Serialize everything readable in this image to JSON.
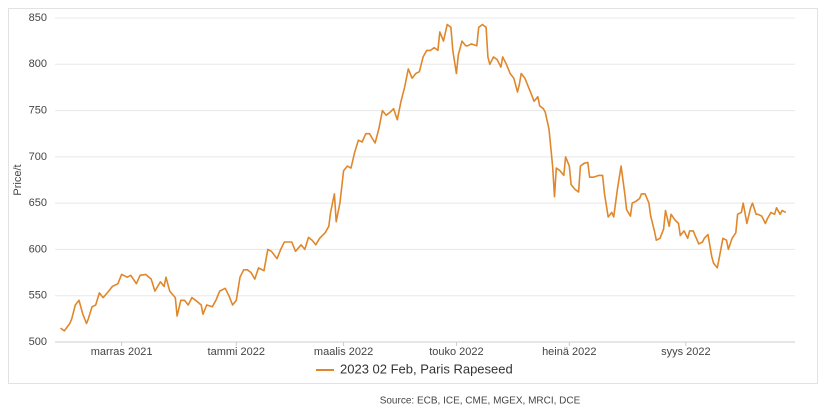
{
  "chart_data": {
    "type": "line",
    "y_label": "Price/t",
    "source": "Source: ECB, ICE, CME, MGEX, MRCI, DCE",
    "x": [
      0,
      2,
      5,
      6,
      8,
      10,
      12,
      14,
      15,
      17,
      19,
      21,
      23,
      26,
      28,
      31,
      33,
      36,
      38,
      41,
      43,
      46,
      49,
      51,
      54,
      56,
      57,
      59,
      62,
      63,
      65,
      67,
      69,
      71,
      73,
      76,
      77,
      79,
      82,
      84,
      86,
      89,
      91,
      93,
      95,
      97,
      99,
      101,
      103,
      105,
      107,
      110,
      112,
      114,
      117,
      119,
      121,
      123,
      125,
      127,
      130,
      132,
      134,
      136,
      138,
      140,
      143,
      145,
      146,
      148,
      149,
      151,
      153,
      155,
      157,
      159,
      161,
      163,
      165,
      167,
      170,
      172,
      174,
      176,
      178,
      180,
      182,
      184,
      186,
      188,
      190,
      192,
      194,
      196,
      198,
      200,
      202,
      204,
      205,
      207,
      209,
      211,
      212,
      214,
      215,
      217,
      219,
      220,
      222,
      225,
      226,
      228,
      230,
      231,
      232,
      234,
      236,
      238,
      239,
      241,
      243,
      245,
      247,
      248,
      249,
      251,
      253,
      254,
      256,
      258,
      259,
      261,
      262,
      264,
      266,
      267,
      268,
      270,
      272,
      273,
      275,
      276,
      278,
      280,
      281,
      283,
      285,
      286,
      288,
      291,
      293,
      294,
      296,
      298,
      299,
      301,
      303,
      305,
      306,
      308,
      309,
      311,
      313,
      314,
      316,
      318,
      319,
      321,
      322,
      324,
      326,
      327,
      329,
      330,
      332,
      334,
      335,
      337,
      339,
      340,
      342,
      343,
      345,
      347,
      348,
      350,
      352,
      353,
      355,
      356,
      358,
      360,
      361,
      363,
      365,
      366,
      368,
      369,
      371,
      373,
      374,
      376,
      377,
      379,
      381,
      382,
      384,
      386,
      387,
      389,
      390,
      392
    ],
    "series": [
      {
        "name": "2023 02 Feb, Paris Rapeseed",
        "color": "#e0872c",
        "values": [
          515,
          512,
          520,
          525,
          540,
          545,
          530,
          520,
          525,
          538,
          540,
          553,
          548,
          555,
          560,
          563,
          573,
          570,
          572,
          563,
          572,
          573,
          568,
          555,
          565,
          560,
          570,
          555,
          548,
          528,
          545,
          545,
          540,
          548,
          545,
          540,
          530,
          540,
          538,
          545,
          555,
          558,
          550,
          540,
          545,
          570,
          578,
          578,
          575,
          568,
          580,
          577,
          600,
          598,
          590,
          600,
          608,
          608,
          608,
          598,
          605,
          600,
          613,
          610,
          605,
          612,
          618,
          625,
          640,
          660,
          630,
          650,
          685,
          690,
          688,
          705,
          718,
          716,
          725,
          725,
          715,
          730,
          750,
          745,
          748,
          752,
          740,
          760,
          775,
          795,
          785,
          790,
          792,
          808,
          815,
          815,
          818,
          815,
          835,
          825,
          843,
          840,
          815,
          790,
          810,
          825,
          820,
          820,
          822,
          820,
          840,
          843,
          840,
          808,
          800,
          808,
          805,
          797,
          808,
          800,
          790,
          785,
          770,
          778,
          790,
          785,
          775,
          770,
          760,
          765,
          755,
          752,
          748,
          730,
          690,
          657,
          688,
          685,
          680,
          700,
          690,
          670,
          665,
          662,
          690,
          693,
          694,
          678,
          678,
          680,
          680,
          660,
          635,
          640,
          635,
          665,
          690,
          660,
          643,
          636,
          650,
          652,
          655,
          660,
          660,
          650,
          636,
          620,
          610,
          612,
          622,
          642,
          625,
          638,
          632,
          628,
          615,
          620,
          612,
          620,
          620,
          615,
          606,
          608,
          612,
          616,
          592,
          585,
          580,
          590,
          612,
          610,
          600,
          612,
          618,
          638,
          640,
          650,
          628,
          645,
          650,
          638,
          638,
          636,
          628,
          633,
          640,
          638,
          645,
          638,
          642,
          640
        ]
      }
    ],
    "xlim": [
      -3,
      397
    ],
    "xticks": [
      {
        "value": 33,
        "label": "marras 2021"
      },
      {
        "value": 95,
        "label": "tammi 2022"
      },
      {
        "value": 153,
        "label": "maalis 2022"
      },
      {
        "value": 214,
        "label": "touko 2022"
      },
      {
        "value": 275,
        "label": "heinä 2022"
      },
      {
        "value": 338,
        "label": "syys 2022"
      }
    ],
    "ylim": [
      500,
      850
    ],
    "yticks": [
      500,
      550,
      600,
      650,
      700,
      750,
      800,
      850
    ],
    "grid": true
  }
}
